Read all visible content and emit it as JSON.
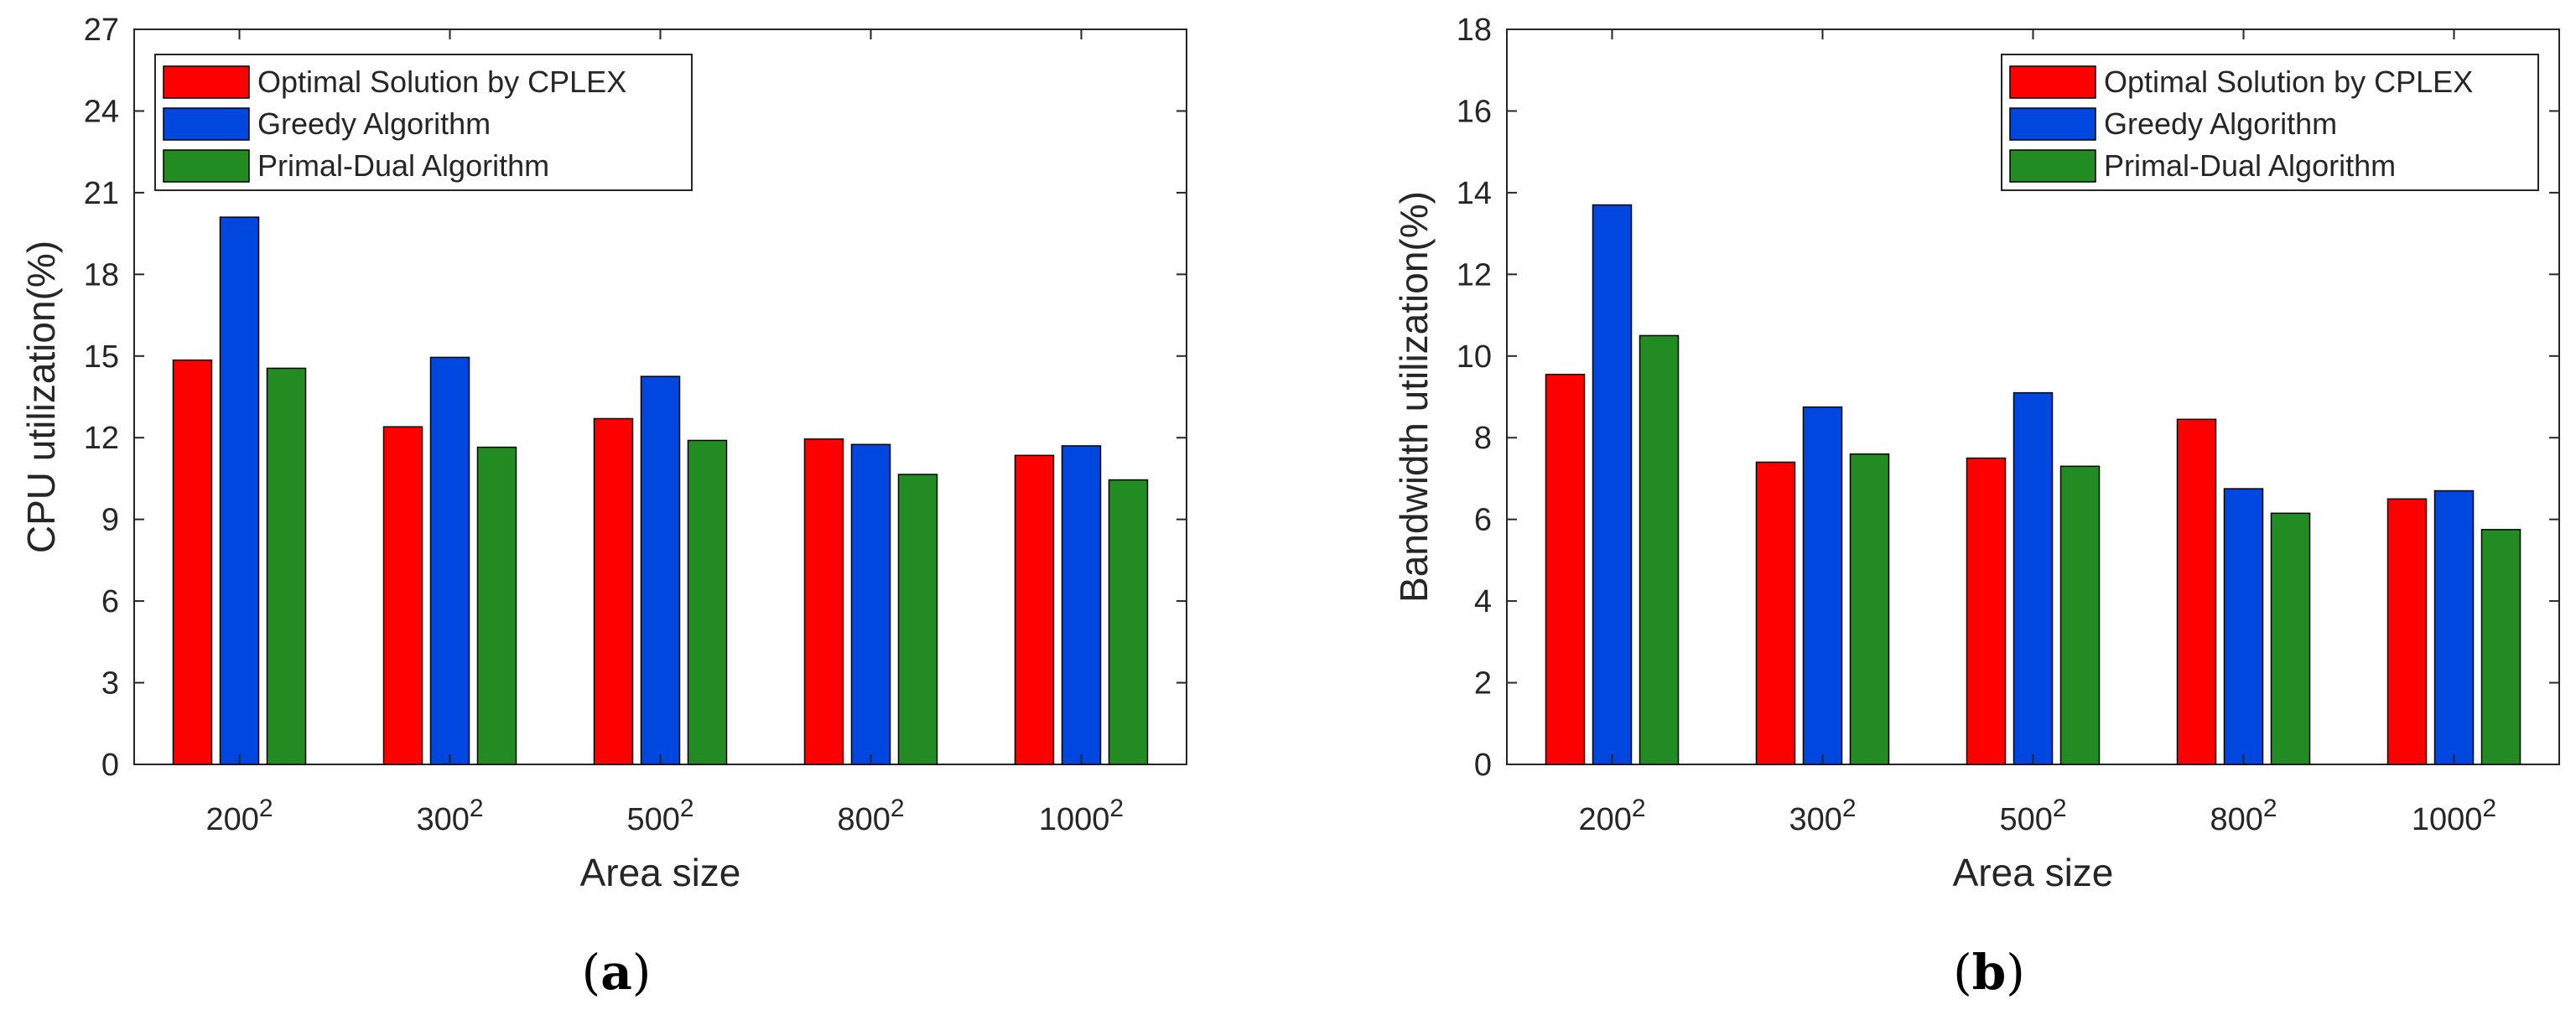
{
  "chart_data": [
    {
      "type": "bar",
      "caption": "(a)",
      "caption_letter": "a",
      "xlabel": "Area size",
      "ylabel": "CPU utilization(%)",
      "categories": [
        {
          "base": "200",
          "exp": "2"
        },
        {
          "base": "300",
          "exp": "2"
        },
        {
          "base": "500",
          "exp": "2"
        },
        {
          "base": "800",
          "exp": "2"
        },
        {
          "base": "1000",
          "exp": "2"
        }
      ],
      "ylim": [
        0,
        27
      ],
      "yticks": [
        0,
        3,
        6,
        9,
        12,
        15,
        18,
        21,
        24,
        27
      ],
      "legend_position": "top-left",
      "series": [
        {
          "name": "Optimal Solution by CPLEX",
          "color": "#ff0000",
          "values": [
            14.85,
            12.4,
            12.7,
            11.95,
            11.35
          ]
        },
        {
          "name": "Greedy Algorithm",
          "color": "#0047e0",
          "values": [
            20.1,
            14.95,
            14.25,
            11.75,
            11.7
          ]
        },
        {
          "name": "Primal-Dual Algorithm",
          "color": "#228b22",
          "values": [
            14.55,
            11.65,
            11.9,
            10.65,
            10.45
          ]
        }
      ]
    },
    {
      "type": "bar",
      "caption": "(b)",
      "caption_letter": "b",
      "xlabel": "Area size",
      "ylabel": "Bandwidth utilization(%)",
      "categories": [
        {
          "base": "200",
          "exp": "2"
        },
        {
          "base": "300",
          "exp": "2"
        },
        {
          "base": "500",
          "exp": "2"
        },
        {
          "base": "800",
          "exp": "2"
        },
        {
          "base": "1000",
          "exp": "2"
        }
      ],
      "ylim": [
        0,
        18
      ],
      "yticks": [
        0,
        2,
        4,
        6,
        8,
        10,
        12,
        14,
        16,
        18
      ],
      "legend_position": "top-right",
      "series": [
        {
          "name": "Optimal Solution by CPLEX",
          "color": "#ff0000",
          "values": [
            9.55,
            7.4,
            7.5,
            8.45,
            6.5
          ]
        },
        {
          "name": "Greedy Algorithm",
          "color": "#0047e0",
          "values": [
            13.7,
            8.75,
            9.1,
            6.75,
            6.7
          ]
        },
        {
          "name": "Primal-Dual Algorithm",
          "color": "#228b22",
          "values": [
            10.5,
            7.6,
            7.3,
            6.15,
            5.75
          ]
        }
      ]
    }
  ]
}
